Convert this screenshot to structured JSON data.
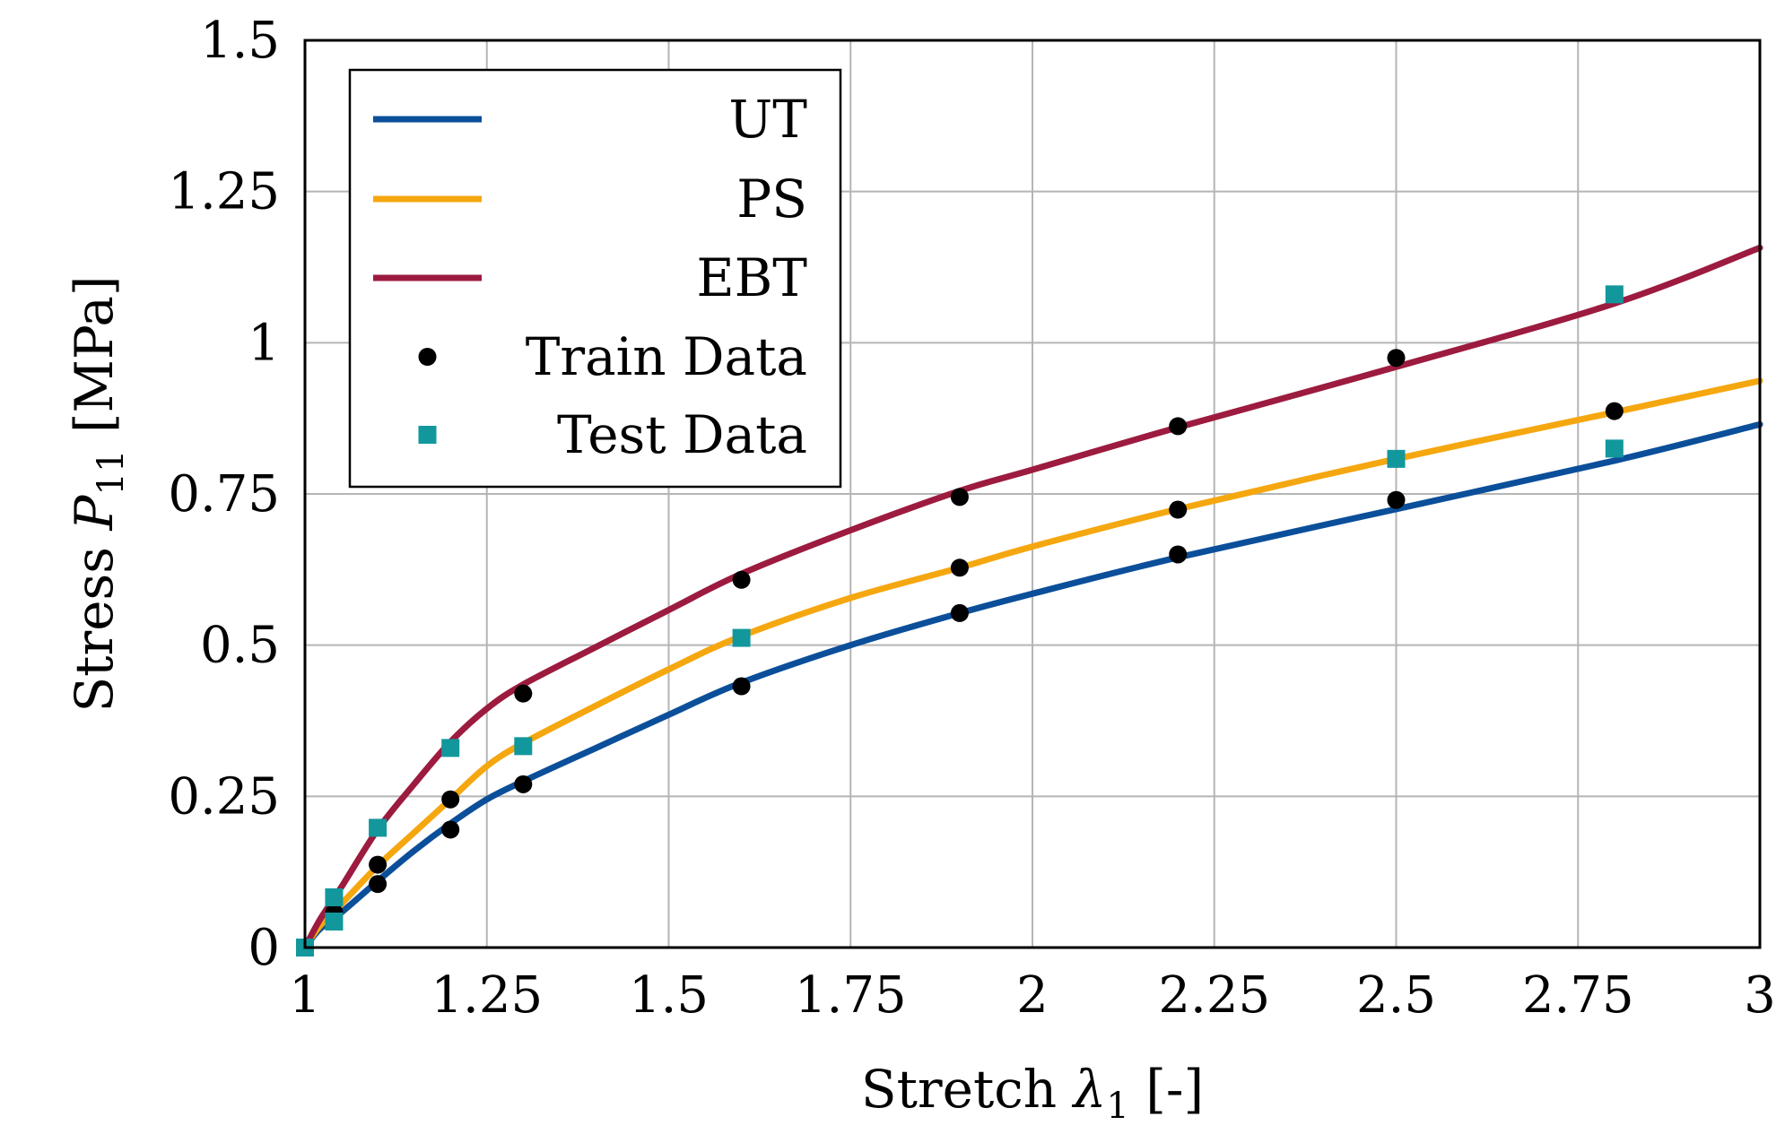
{
  "chart_data": {
    "type": "line",
    "xlabel": "Stretch λ1 [-]",
    "ylabel": "Stress P11 [MPa]",
    "xlabel_parts": {
      "pre": "Stretch ",
      "sym": "λ",
      "sub": "1",
      "post": " [-]"
    },
    "ylabel_parts": {
      "pre": "Stress ",
      "sym": "P",
      "sub": "11",
      "post": " [MPa]"
    },
    "xlim": [
      1,
      3
    ],
    "ylim": [
      0,
      1.5
    ],
    "xticks": [
      1,
      1.25,
      1.5,
      1.75,
      2,
      2.25,
      2.5,
      2.75,
      3
    ],
    "xtick_labels": [
      "1",
      "1.25",
      "1.5",
      "1.75",
      "2",
      "2.25",
      "2.5",
      "2.75",
      "3"
    ],
    "yticks": [
      0,
      0.25,
      0.5,
      0.75,
      1,
      1.25,
      1.5
    ],
    "ytick_labels": [
      "0",
      "0.25",
      "0.5",
      "0.75",
      "1",
      "1.25",
      "1.5"
    ],
    "grid": true,
    "legend_position": "top-left",
    "series": [
      {
        "name": "UT",
        "color": "#0B4F9A",
        "x": [
          1,
          1.02,
          1.05,
          1.1,
          1.15,
          1.2,
          1.25,
          1.3,
          1.4,
          1.5,
          1.6,
          1.75,
          1.9,
          2.0,
          2.2,
          2.5,
          2.8,
          3.0
        ],
        "y": [
          0,
          0.03,
          0.058,
          0.11,
          0.16,
          0.205,
          0.245,
          0.275,
          0.33,
          0.385,
          0.438,
          0.5,
          0.553,
          0.585,
          0.645,
          0.725,
          0.805,
          0.865
        ]
      },
      {
        "name": "PS",
        "color": "#F5A70F",
        "x": [
          1,
          1.02,
          1.05,
          1.1,
          1.15,
          1.2,
          1.25,
          1.3,
          1.4,
          1.5,
          1.6,
          1.75,
          1.9,
          2.0,
          2.2,
          2.5,
          2.8,
          3.0
        ],
        "y": [
          0,
          0.035,
          0.072,
          0.135,
          0.19,
          0.245,
          0.3,
          0.338,
          0.4,
          0.46,
          0.515,
          0.578,
          0.628,
          0.663,
          0.725,
          0.808,
          0.885,
          0.937
        ]
      },
      {
        "name": "EBT",
        "color": "#9C1B3F",
        "x": [
          1,
          1.02,
          1.05,
          1.1,
          1.15,
          1.2,
          1.25,
          1.3,
          1.4,
          1.5,
          1.6,
          1.75,
          1.9,
          2.0,
          2.2,
          2.5,
          2.8,
          3.0
        ],
        "y": [
          0,
          0.045,
          0.1,
          0.195,
          0.27,
          0.34,
          0.395,
          0.435,
          0.497,
          0.558,
          0.618,
          0.69,
          0.755,
          0.79,
          0.86,
          0.96,
          1.065,
          1.157
        ]
      }
    ],
    "train_data": {
      "name": "Train Data",
      "color": "#000000",
      "points": [
        [
          1.04,
          0.058
        ],
        [
          1.1,
          0.105
        ],
        [
          1.2,
          0.195
        ],
        [
          1.3,
          0.27
        ],
        [
          1.6,
          0.432
        ],
        [
          1.9,
          0.553
        ],
        [
          2.2,
          0.65
        ],
        [
          2.5,
          0.74
        ],
        [
          1.1,
          0.137
        ],
        [
          1.2,
          0.245
        ],
        [
          1.9,
          0.628
        ],
        [
          2.2,
          0.724
        ],
        [
          2.8,
          0.887
        ],
        [
          1.3,
          0.42
        ],
        [
          1.6,
          0.608
        ],
        [
          1.9,
          0.745
        ],
        [
          2.2,
          0.862
        ],
        [
          2.5,
          0.975
        ]
      ]
    },
    "test_data": {
      "name": "Test Data",
      "color": "#12979D",
      "points": [
        [
          1.0,
          0.0
        ],
        [
          1.04,
          0.043
        ],
        [
          1.04,
          0.083
        ],
        [
          1.1,
          0.198
        ],
        [
          1.2,
          0.33
        ],
        [
          1.3,
          0.333
        ],
        [
          1.6,
          0.512
        ],
        [
          2.5,
          0.808
        ],
        [
          2.8,
          0.825
        ],
        [
          2.8,
          1.08
        ]
      ]
    }
  }
}
